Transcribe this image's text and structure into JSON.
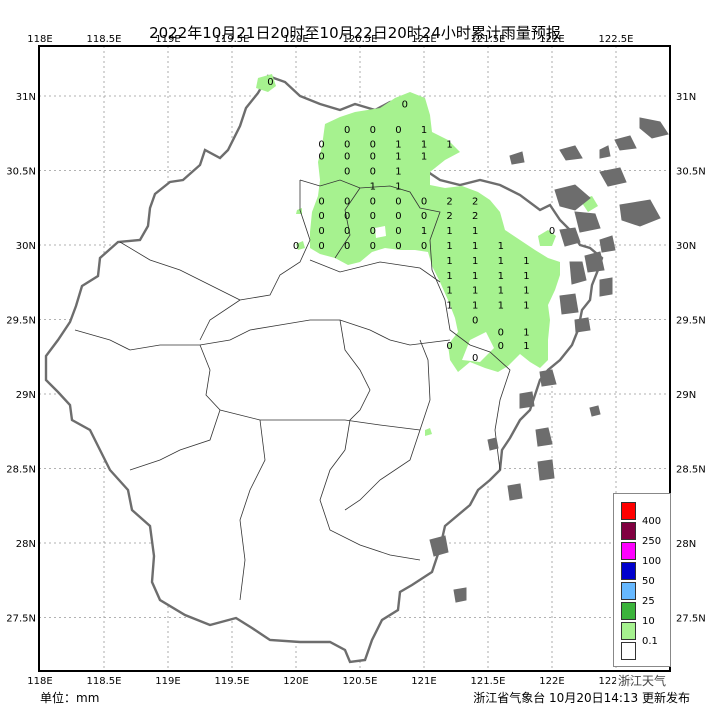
{
  "title": "2022年10月21日20时至10月22日20时24小时累计雨量预报",
  "unit_label": "单位：mm",
  "issuer": "浙江省气象台 10月20日14:13 更新发布",
  "watermark": "浙江天气",
  "x_ticks": [
    "118E",
    "118.5E",
    "119E",
    "119.5E",
    "120E",
    "120.5E",
    "121E",
    "121.5E",
    "122E",
    "122.5E"
  ],
  "y_ticks": [
    "31N",
    "30.5N",
    "30N",
    "29.5N",
    "29N",
    "28.5N",
    "28N",
    "27.5N"
  ],
  "legend": {
    "levels": [
      {
        "label": "400",
        "color": "#ff0000"
      },
      {
        "label": "250",
        "color": "#800040"
      },
      {
        "label": "100",
        "color": "#ff00ff"
      },
      {
        "label": "50",
        "color": "#0000cd"
      },
      {
        "label": "25",
        "color": "#66b8ff"
      },
      {
        "label": "10",
        "color": "#3cb43c"
      },
      {
        "label": "0.1",
        "color": "#a6f28f"
      },
      {
        "label": "",
        "color": "#ffffff"
      }
    ]
  },
  "rain_values": [
    {
      "lon": 119.8,
      "lat": 31.1,
      "v": "0"
    },
    {
      "lon": 120.85,
      "lat": 30.95,
      "v": "0"
    },
    {
      "lon": 120.4,
      "lat": 30.78,
      "v": "0"
    },
    {
      "lon": 120.6,
      "lat": 30.78,
      "v": "0"
    },
    {
      "lon": 120.8,
      "lat": 30.78,
      "v": "0"
    },
    {
      "lon": 121.0,
      "lat": 30.78,
      "v": "1"
    },
    {
      "lon": 120.2,
      "lat": 30.68,
      "v": "0"
    },
    {
      "lon": 120.4,
      "lat": 30.68,
      "v": "0"
    },
    {
      "lon": 120.6,
      "lat": 30.68,
      "v": "0"
    },
    {
      "lon": 120.8,
      "lat": 30.68,
      "v": "1"
    },
    {
      "lon": 121.0,
      "lat": 30.68,
      "v": "1"
    },
    {
      "lon": 121.2,
      "lat": 30.68,
      "v": "1"
    },
    {
      "lon": 120.2,
      "lat": 30.6,
      "v": "0"
    },
    {
      "lon": 120.4,
      "lat": 30.6,
      "v": "0"
    },
    {
      "lon": 120.6,
      "lat": 30.6,
      "v": "0"
    },
    {
      "lon": 120.8,
      "lat": 30.6,
      "v": "1"
    },
    {
      "lon": 121.0,
      "lat": 30.6,
      "v": "1"
    },
    {
      "lon": 120.4,
      "lat": 30.5,
      "v": "0"
    },
    {
      "lon": 120.6,
      "lat": 30.5,
      "v": "0"
    },
    {
      "lon": 120.8,
      "lat": 30.5,
      "v": "1"
    },
    {
      "lon": 120.6,
      "lat": 30.4,
      "v": "1"
    },
    {
      "lon": 120.8,
      "lat": 30.4,
      "v": "1"
    },
    {
      "lon": 120.2,
      "lat": 30.3,
      "v": "0"
    },
    {
      "lon": 120.4,
      "lat": 30.3,
      "v": "0"
    },
    {
      "lon": 120.6,
      "lat": 30.3,
      "v": "0"
    },
    {
      "lon": 120.8,
      "lat": 30.3,
      "v": "0"
    },
    {
      "lon": 121.0,
      "lat": 30.3,
      "v": "0"
    },
    {
      "lon": 121.2,
      "lat": 30.3,
      "v": "2"
    },
    {
      "lon": 121.4,
      "lat": 30.3,
      "v": "2"
    },
    {
      "lon": 120.2,
      "lat": 30.2,
      "v": "0"
    },
    {
      "lon": 120.4,
      "lat": 30.2,
      "v": "0"
    },
    {
      "lon": 120.6,
      "lat": 30.2,
      "v": "0"
    },
    {
      "lon": 120.8,
      "lat": 30.2,
      "v": "0"
    },
    {
      "lon": 121.0,
      "lat": 30.2,
      "v": "0"
    },
    {
      "lon": 121.2,
      "lat": 30.2,
      "v": "2"
    },
    {
      "lon": 121.4,
      "lat": 30.2,
      "v": "2"
    },
    {
      "lon": 120.2,
      "lat": 30.1,
      "v": "0"
    },
    {
      "lon": 120.4,
      "lat": 30.1,
      "v": "0"
    },
    {
      "lon": 120.6,
      "lat": 30.1,
      "v": "0"
    },
    {
      "lon": 120.8,
      "lat": 30.1,
      "v": "0"
    },
    {
      "lon": 121.0,
      "lat": 30.1,
      "v": "1"
    },
    {
      "lon": 121.2,
      "lat": 30.1,
      "v": "1"
    },
    {
      "lon": 121.4,
      "lat": 30.1,
      "v": "1"
    },
    {
      "lon": 120.0,
      "lat": 30.0,
      "v": "0"
    },
    {
      "lon": 120.2,
      "lat": 30.0,
      "v": "0"
    },
    {
      "lon": 120.4,
      "lat": 30.0,
      "v": "0"
    },
    {
      "lon": 120.6,
      "lat": 30.0,
      "v": "0"
    },
    {
      "lon": 120.8,
      "lat": 30.0,
      "v": "0"
    },
    {
      "lon": 121.0,
      "lat": 30.0,
      "v": "0"
    },
    {
      "lon": 121.2,
      "lat": 30.0,
      "v": "1"
    },
    {
      "lon": 121.4,
      "lat": 30.0,
      "v": "1"
    },
    {
      "lon": 121.6,
      "lat": 30.0,
      "v": "1"
    },
    {
      "lon": 121.2,
      "lat": 29.9,
      "v": "1"
    },
    {
      "lon": 121.4,
      "lat": 29.9,
      "v": "1"
    },
    {
      "lon": 121.6,
      "lat": 29.9,
      "v": "1"
    },
    {
      "lon": 121.8,
      "lat": 29.9,
      "v": "1"
    },
    {
      "lon": 121.2,
      "lat": 29.8,
      "v": "1"
    },
    {
      "lon": 121.4,
      "lat": 29.8,
      "v": "1"
    },
    {
      "lon": 121.6,
      "lat": 29.8,
      "v": "1"
    },
    {
      "lon": 121.8,
      "lat": 29.8,
      "v": "1"
    },
    {
      "lon": 121.2,
      "lat": 29.7,
      "v": "1"
    },
    {
      "lon": 121.4,
      "lat": 29.7,
      "v": "1"
    },
    {
      "lon": 121.6,
      "lat": 29.7,
      "v": "1"
    },
    {
      "lon": 121.8,
      "lat": 29.7,
      "v": "1"
    },
    {
      "lon": 121.2,
      "lat": 29.6,
      "v": "1"
    },
    {
      "lon": 121.4,
      "lat": 29.6,
      "v": "1"
    },
    {
      "lon": 121.6,
      "lat": 29.6,
      "v": "1"
    },
    {
      "lon": 121.8,
      "lat": 29.6,
      "v": "1"
    },
    {
      "lon": 121.4,
      "lat": 29.5,
      "v": "0"
    },
    {
      "lon": 121.6,
      "lat": 29.42,
      "v": "0"
    },
    {
      "lon": 121.8,
      "lat": 29.42,
      "v": "1"
    },
    {
      "lon": 121.2,
      "lat": 29.33,
      "v": "0"
    },
    {
      "lon": 121.6,
      "lat": 29.33,
      "v": "0"
    },
    {
      "lon": 121.8,
      "lat": 29.33,
      "v": "1"
    },
    {
      "lon": 121.4,
      "lat": 29.25,
      "v": "0"
    },
    {
      "lon": 122.0,
      "lat": 30.1,
      "v": "0"
    }
  ]
}
